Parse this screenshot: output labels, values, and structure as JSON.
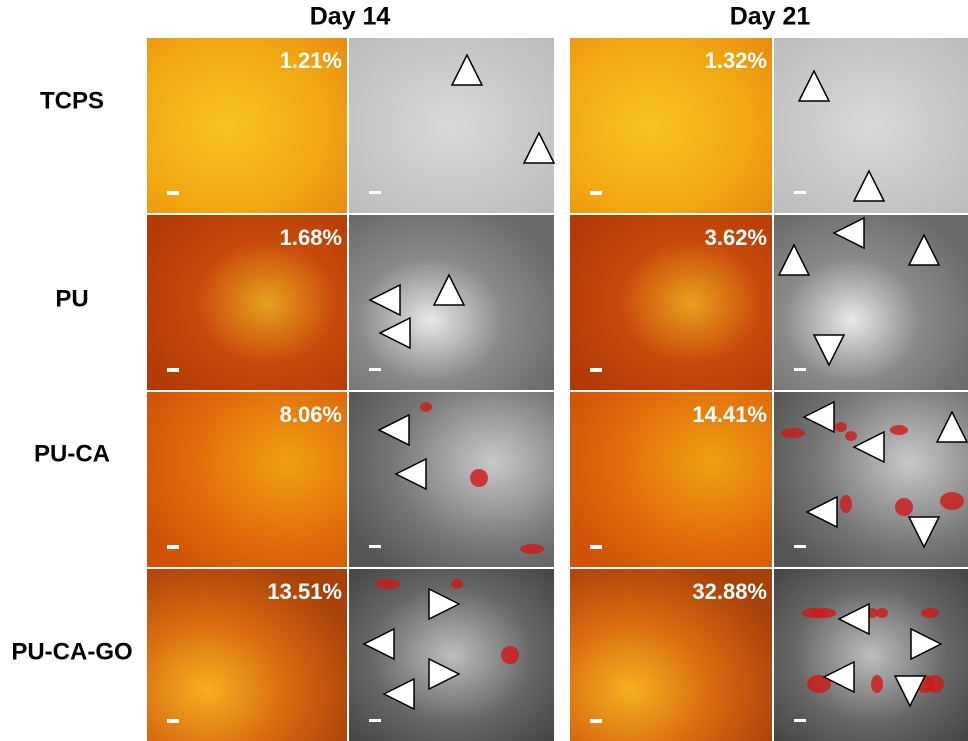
{
  "columns": [
    "Day 14",
    "Day 21"
  ],
  "rows": [
    {
      "label": "TCPS",
      "percentages": [
        "1.21%",
        "1.32%"
      ]
    },
    {
      "label": "PU",
      "percentages": [
        "1.68%",
        "3.62%"
      ]
    },
    {
      "label": "PU-CA",
      "percentages": [
        "8.06%",
        "14.41%"
      ]
    },
    {
      "label": "PU-CA-GO",
      "percentages": [
        "13.51%",
        "32.88%"
      ]
    }
  ]
}
